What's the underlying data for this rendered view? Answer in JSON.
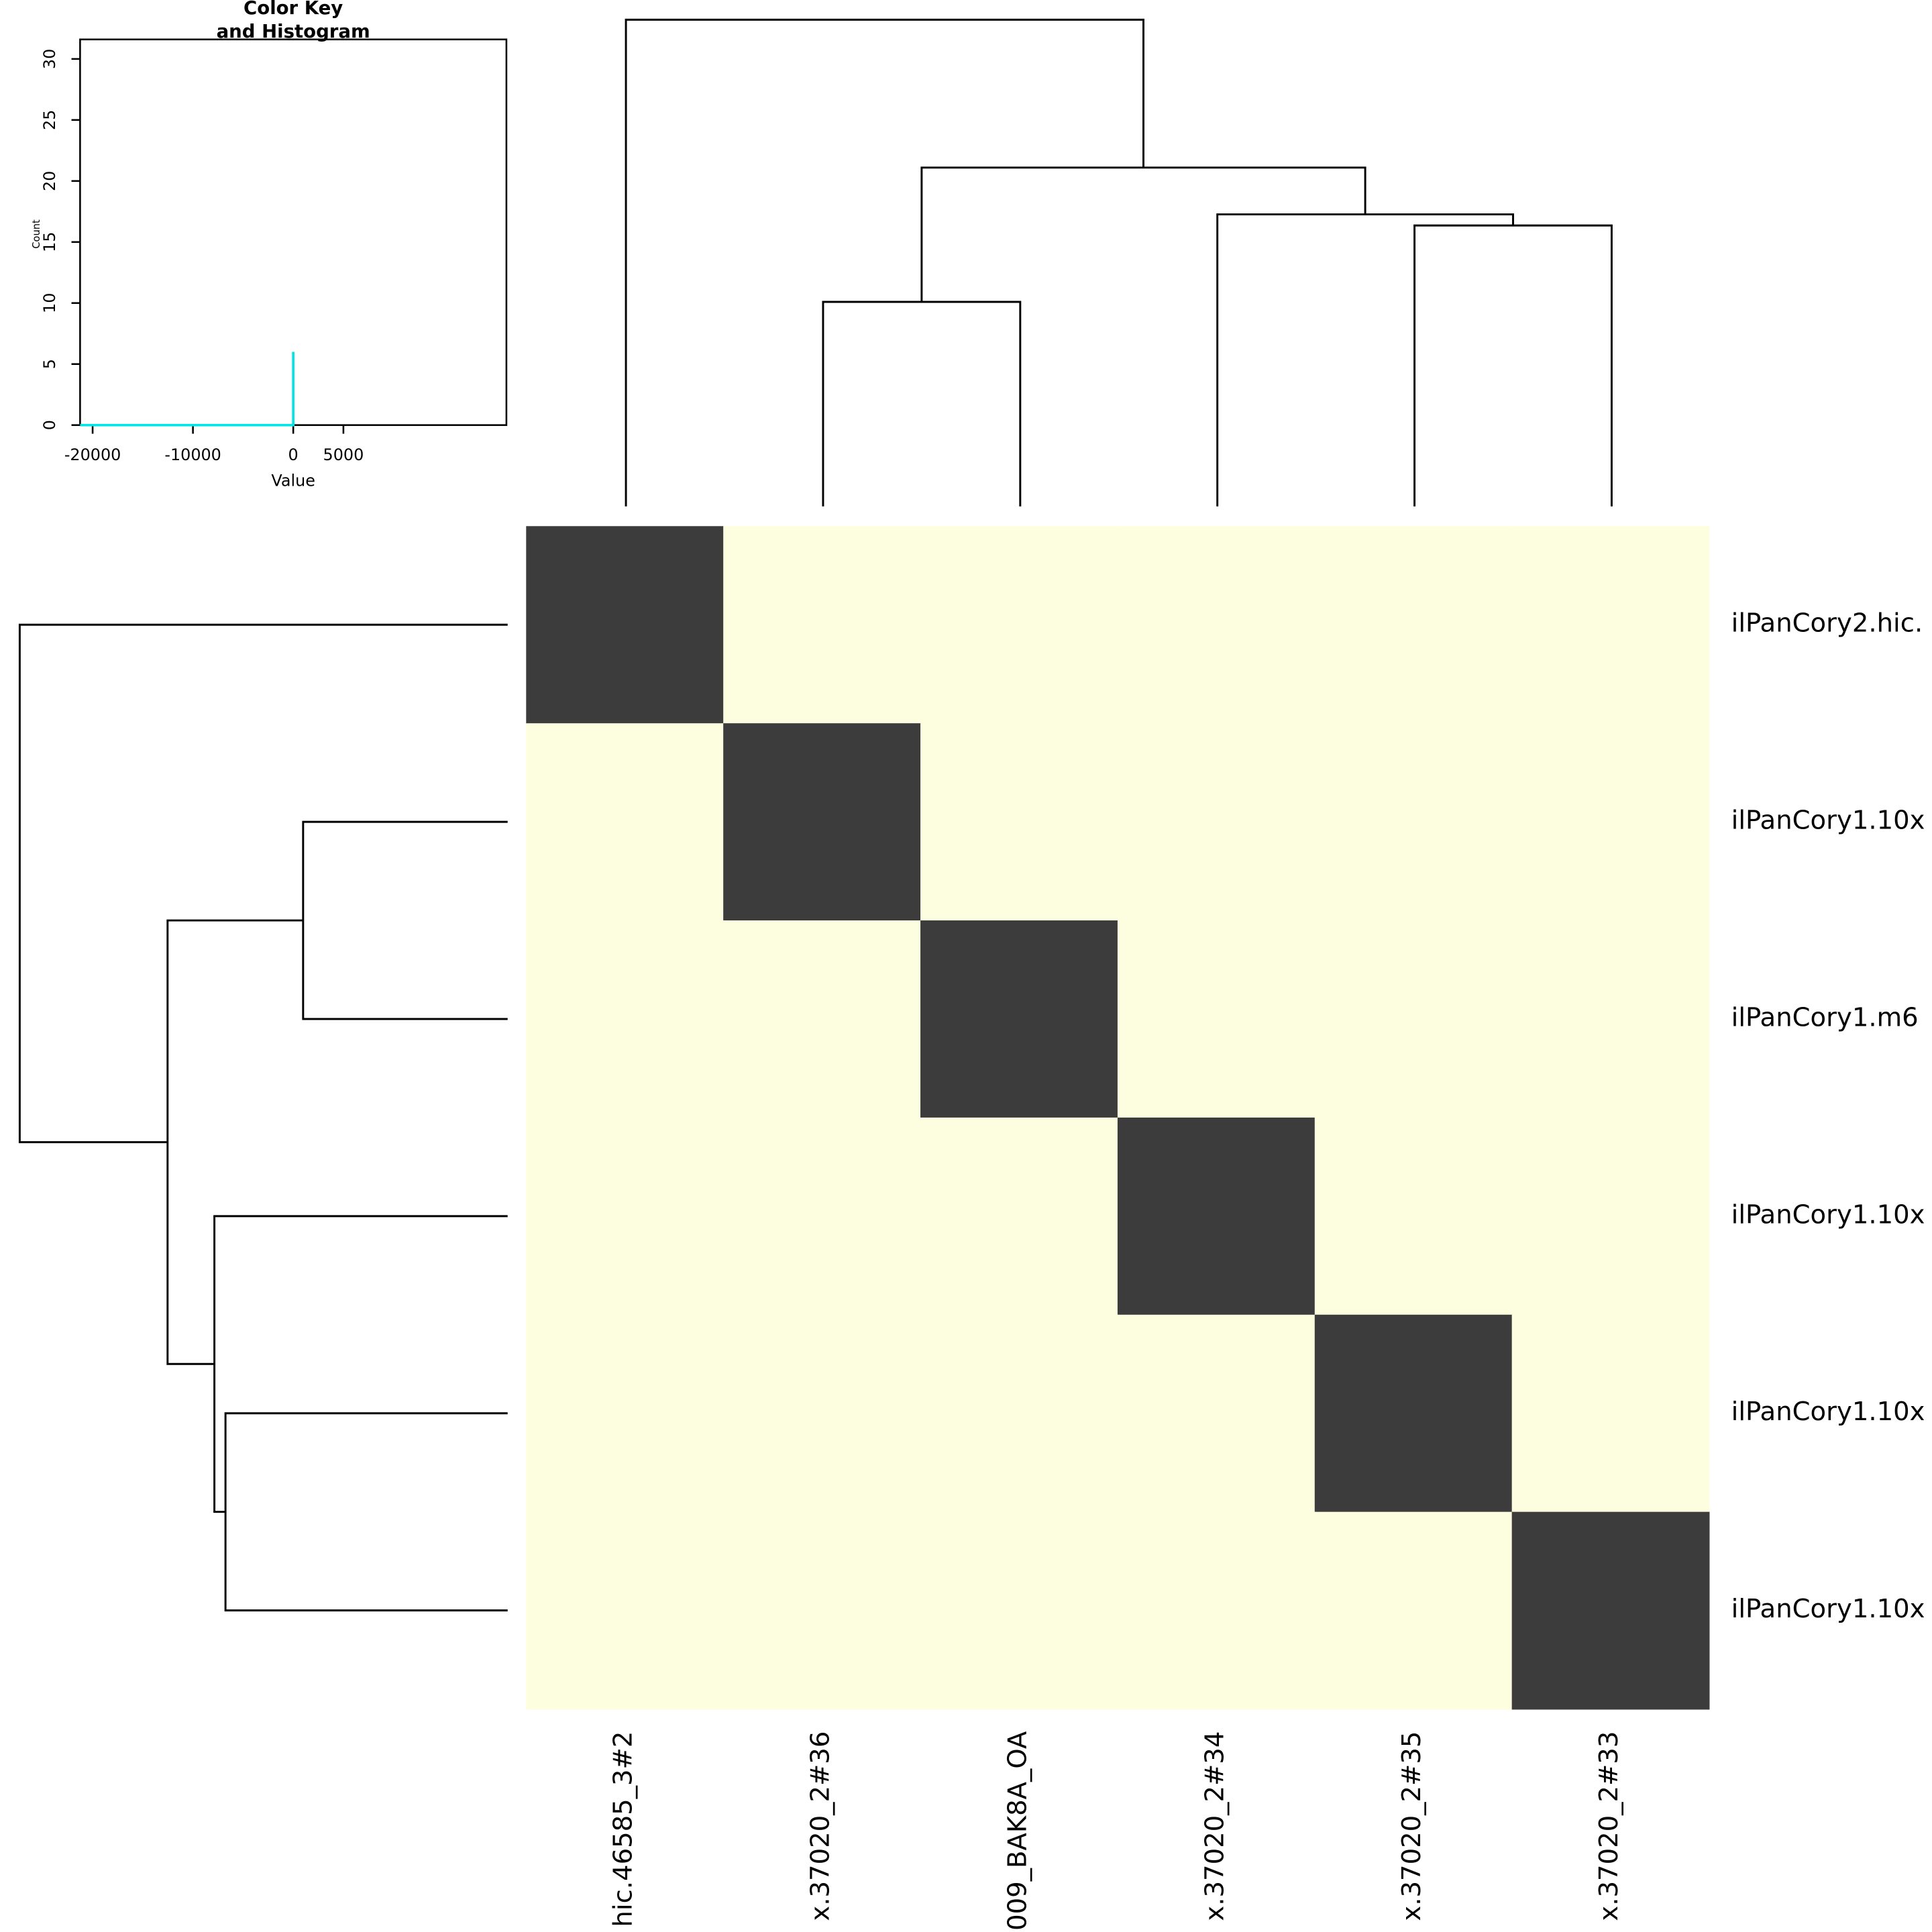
{
  "chart_data": [
    {
      "type": "line",
      "title": [
        "Color Key",
        "and Histogram"
      ],
      "x_label": "Value",
      "y_label": "Count",
      "x": [
        -21250,
        0,
        0
      ],
      "series": [
        {
          "color": "#00e5e5",
          "values": [
            0,
            0,
            6
          ]
        }
      ],
      "xlim": [
        -21250,
        21250
      ],
      "xticks": [
        -20000,
        -10000,
        0,
        5000
      ],
      "ylim": [
        0,
        31.6
      ],
      "yticks": [
        0,
        5,
        10,
        15,
        20,
        25,
        30
      ]
    },
    {
      "type": "heatmap",
      "rows": [
        "ilPanCory2.hic.",
        "ilPanCory1.10x",
        "ilPanCory1.m6",
        "ilPanCory1.10x",
        "ilPanCory1.10x",
        "ilPanCory1.10x"
      ],
      "columns": [
        "hic.46585_3#2",
        "x.37020_2#36",
        "009_BAK8A_OA",
        "x.37020_2#34",
        "x.37020_2#35",
        "x.37020_2#33"
      ],
      "values": [
        [
          0,
          null,
          null,
          null,
          null,
          null
        ],
        [
          null,
          0,
          null,
          null,
          null,
          null
        ],
        [
          null,
          null,
          0,
          null,
          null,
          null
        ],
        [
          null,
          null,
          null,
          0,
          null,
          null
        ],
        [
          null,
          null,
          null,
          null,
          0,
          null
        ],
        [
          null,
          null,
          null,
          null,
          null,
          0
        ]
      ],
      "color": "#3c3c3c",
      "na_color": "#fdfde0"
    }
  ]
}
